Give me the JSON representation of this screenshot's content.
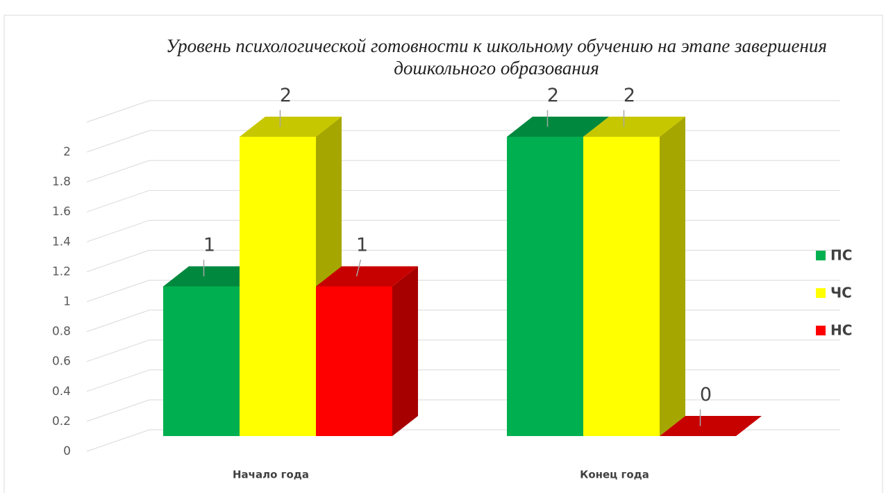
{
  "chart_data": {
    "type": "bar3d",
    "title": "Уровень психологической готовности к школьному обучению на этапе завершения дошкольного образования",
    "categories": [
      "Начало года",
      "Конец года"
    ],
    "series": [
      {
        "name": "ПС",
        "color": "#00b050",
        "values": [
          1,
          2
        ]
      },
      {
        "name": "ЧС",
        "color": "#ffff00",
        "values": [
          2,
          2
        ]
      },
      {
        "name": "НС",
        "color": "#ff0000",
        "values": [
          1,
          0
        ]
      }
    ],
    "ylim": [
      0,
      2.2
    ],
    "yticks": [
      0,
      0.2,
      0.4,
      0.6,
      0.8,
      1,
      1.2,
      1.4,
      1.6,
      1.8,
      2
    ],
    "grid": true,
    "legend": "right"
  }
}
